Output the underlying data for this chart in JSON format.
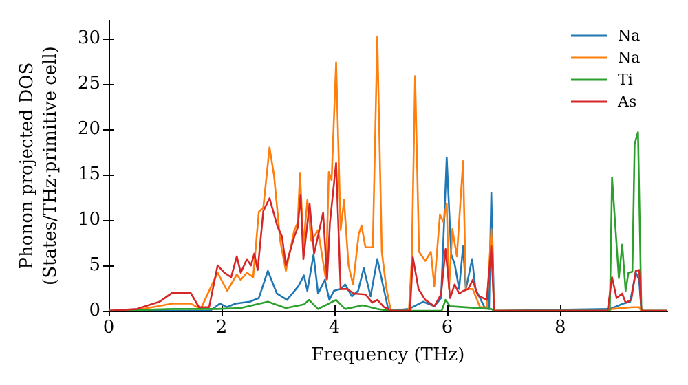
{
  "chart_data": {
    "type": "line",
    "xlabel": "Frequency (THz)",
    "ylabel": "Phonon projected DOS\n(States/THz·primitive cell)",
    "xlim": [
      0,
      9.9
    ],
    "ylim": [
      0,
      32
    ],
    "xticks": [
      0,
      2,
      4,
      6,
      8
    ],
    "yticks": [
      0,
      5,
      10,
      15,
      20,
      25,
      30
    ],
    "grid": false,
    "legend": "top right",
    "marker": "none",
    "line_style": "solid",
    "series": [
      {
        "name": "Na",
        "color": "#1f77b4",
        "x": [
          0,
          1.8,
          1.97,
          2.09,
          2.25,
          2.5,
          2.66,
          2.82,
          2.98,
          3.16,
          3.36,
          3.46,
          3.52,
          3.63,
          3.71,
          3.83,
          3.91,
          3.99,
          4.11,
          4.19,
          4.31,
          4.42,
          4.52,
          4.64,
          4.76,
          4.84,
          4.96,
          5.32,
          5.57,
          5.77,
          5.89,
          5.99,
          6.07,
          6.13,
          6.21,
          6.28,
          6.33,
          6.44,
          6.5,
          6.66,
          6.74,
          6.78,
          6.83,
          8.88,
          9.12,
          9.24,
          9.34,
          9.4,
          9.44,
          9.9
        ],
        "values": [
          0,
          0,
          0.8,
          0.4,
          0.8,
          1.0,
          1.4,
          4.4,
          1.9,
          1.2,
          2.7,
          3.9,
          2.2,
          6.2,
          1.9,
          3.4,
          1.2,
          2.2,
          2.4,
          2.9,
          1.6,
          2.2,
          4.7,
          1.6,
          5.7,
          3.4,
          0,
          0.2,
          1.0,
          0.5,
          1.4,
          16.9,
          6.2,
          5.2,
          2.4,
          7.1,
          2.4,
          5.7,
          2.4,
          0.4,
          0.2,
          13.0,
          0,
          0.2,
          0.8,
          1.0,
          4.2,
          3.4,
          0,
          0
        ]
      },
      {
        "name": "Na",
        "color": "#ff7f0e",
        "x": [
          0,
          0.5,
          1.13,
          1.45,
          1.63,
          1.93,
          2.1,
          2.27,
          2.34,
          2.45,
          2.56,
          2.66,
          2.74,
          2.85,
          2.93,
          3.04,
          3.14,
          3.29,
          3.35,
          3.39,
          3.45,
          3.52,
          3.59,
          3.71,
          3.85,
          3.9,
          3.95,
          4.03,
          4.11,
          4.17,
          4.25,
          4.33,
          4.43,
          4.48,
          4.55,
          4.68,
          4.76,
          4.84,
          4.92,
          5.0,
          5.32,
          5.37,
          5.43,
          5.5,
          5.61,
          5.71,
          5.77,
          5.87,
          5.93,
          5.99,
          6.03,
          6.09,
          6.17,
          6.28,
          6.33,
          6.45,
          6.58,
          6.7,
          6.78,
          6.83,
          8.84,
          8.92,
          9.28,
          9.4,
          9.44,
          9.9
        ],
        "values": [
          0,
          0.1,
          0.8,
          0.8,
          0.2,
          4.2,
          2.2,
          4.0,
          3.4,
          4.2,
          3.7,
          10.9,
          11.4,
          18.0,
          14.9,
          7.7,
          4.4,
          8.9,
          9.7,
          15.2,
          7.2,
          12.2,
          7.7,
          8.9,
          3.4,
          15.3,
          14.4,
          27.4,
          8.9,
          12.2,
          5.0,
          2.9,
          8.4,
          9.4,
          7.0,
          7.0,
          30.2,
          6.5,
          2.5,
          0,
          0,
          5.5,
          25.9,
          6.5,
          5.5,
          6.5,
          2.7,
          10.6,
          9.8,
          11.8,
          2.4,
          9.0,
          6.0,
          16.5,
          2.4,
          2.4,
          0.4,
          0.4,
          9.0,
          0,
          0,
          0.2,
          0.4,
          0.4,
          0,
          0
        ]
      },
      {
        "name": "Ti",
        "color": "#2ca02c",
        "x": [
          0,
          1.13,
          1.93,
          2.34,
          2.82,
          3.14,
          3.46,
          3.55,
          3.71,
          4.03,
          4.19,
          4.5,
          4.76,
          4.98,
          5.9,
          5.97,
          6.05,
          6.78,
          6.83,
          8.88,
          8.92,
          9.04,
          9.1,
          9.16,
          9.21,
          9.28,
          9.32,
          9.38,
          9.44,
          9.9
        ],
        "values": [
          0,
          0.2,
          0.2,
          0.3,
          1.0,
          0.3,
          0.7,
          1.2,
          0.2,
          1.2,
          0.2,
          0.6,
          0.2,
          0,
          0,
          1.2,
          0.5,
          0.2,
          0,
          0,
          14.7,
          3.6,
          7.3,
          2.2,
          4.2,
          4.3,
          18.4,
          19.7,
          0,
          0
        ]
      },
      {
        "name": "As",
        "color": "#d62728",
        "x": [
          0,
          0.5,
          0.9,
          1.13,
          1.45,
          1.6,
          1.78,
          1.93,
          2.05,
          2.17,
          2.27,
          2.34,
          2.45,
          2.52,
          2.58,
          2.64,
          2.74,
          2.85,
          2.99,
          3.07,
          3.14,
          3.29,
          3.35,
          3.4,
          3.45,
          3.56,
          3.64,
          3.8,
          3.87,
          3.92,
          4.03,
          4.11,
          4.17,
          4.22,
          4.35,
          4.55,
          4.67,
          4.76,
          4.88,
          5.0,
          5.34,
          5.39,
          5.49,
          5.61,
          5.77,
          5.89,
          5.97,
          6.05,
          6.13,
          6.21,
          6.29,
          6.37,
          6.45,
          6.54,
          6.7,
          6.78,
          6.83,
          8.84,
          8.92,
          9.0,
          9.1,
          9.16,
          9.26,
          9.34,
          9.4,
          9.44,
          9.9
        ],
        "values": [
          0,
          0.2,
          1.0,
          2.0,
          2.0,
          0.4,
          0.4,
          5.0,
          4.2,
          3.7,
          6.0,
          4.2,
          5.7,
          5.0,
          6.3,
          4.5,
          11.0,
          12.4,
          9.3,
          8.2,
          5.0,
          8.2,
          9.2,
          12.8,
          5.7,
          11.8,
          6.3,
          10.8,
          3.5,
          9.7,
          16.3,
          2.4,
          2.4,
          2.4,
          1.9,
          1.8,
          0.9,
          1.2,
          0.4,
          0,
          0,
          5.9,
          2.4,
          1.2,
          0.5,
          1.8,
          6.8,
          1.4,
          2.9,
          1.9,
          2.2,
          2.4,
          3.4,
          1.7,
          1.2,
          7.1,
          0,
          0,
          3.7,
          1.4,
          1.9,
          0.9,
          1.2,
          4.4,
          4.5,
          0,
          0
        ]
      }
    ]
  }
}
